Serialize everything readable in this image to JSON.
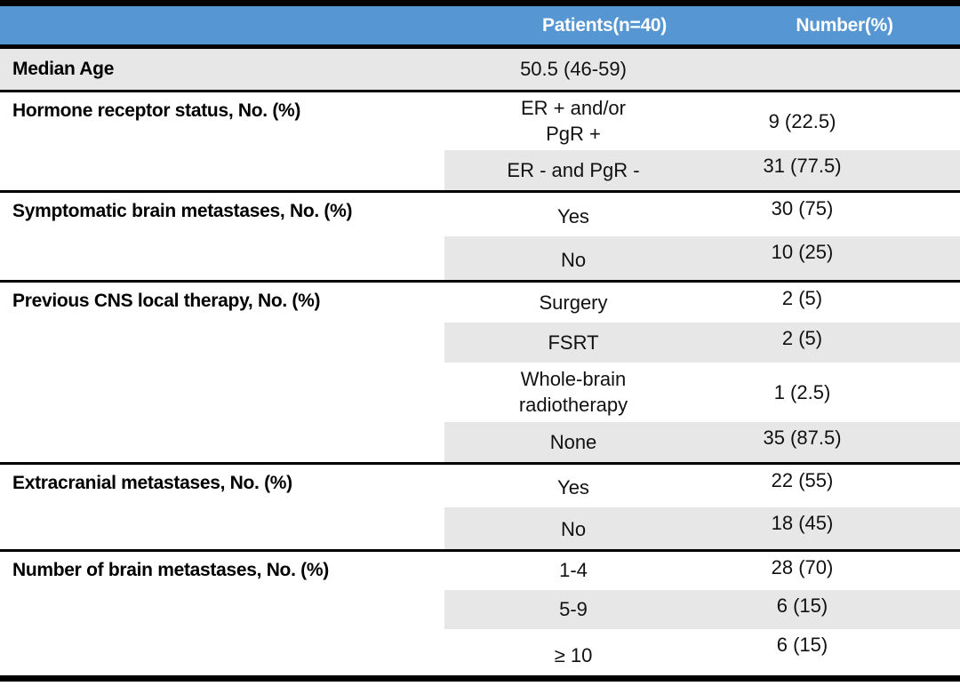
{
  "table": {
    "header": {
      "patients_label": "Patients(n=40)",
      "number_label": "Number(%)"
    },
    "colors": {
      "header_bg": "#5596D3",
      "header_text": "#FFFFFF",
      "shaded_row_bg": "#E8E7E7",
      "border": "#000000"
    },
    "sections": [
      {
        "label": "Median Age",
        "rows": [
          {
            "category": "50.5 (46-59)",
            "value": ""
          }
        ]
      },
      {
        "label": "Hormone receptor status, No. (%)",
        "rows": [
          {
            "category": "ER + and/or\nPgR +",
            "value": "9 (22.5)"
          },
          {
            "category": "ER - and PgR -",
            "value": "31 (77.5)"
          }
        ]
      },
      {
        "label": "Symptomatic brain metastases, No. (%)",
        "rows": [
          {
            "category": "Yes",
            "value": "30 (75)"
          },
          {
            "category": "No",
            "value": "10 (25)"
          }
        ]
      },
      {
        "label": "Previous CNS local therapy, No. (%)",
        "rows": [
          {
            "category": "Surgery",
            "value": "2 (5)"
          },
          {
            "category": "FSRT",
            "value": "2 (5)"
          },
          {
            "category": "Whole-brain\nradiotherapy",
            "value": "1 (2.5)"
          },
          {
            "category": "None",
            "value": "35 (87.5)"
          }
        ]
      },
      {
        "label": "Extracranial metastases, No. (%)",
        "rows": [
          {
            "category": "Yes",
            "value": "22 (55)"
          },
          {
            "category": "No",
            "value": "18 (45)"
          }
        ]
      },
      {
        "label": "Number of brain metastases, No. (%)",
        "rows": [
          {
            "category": "1-4",
            "value": "28 (70)"
          },
          {
            "category": "5-9",
            "value": "6 (15)"
          },
          {
            "category": "≥ 10",
            "value": "6 (15)"
          }
        ]
      }
    ]
  }
}
